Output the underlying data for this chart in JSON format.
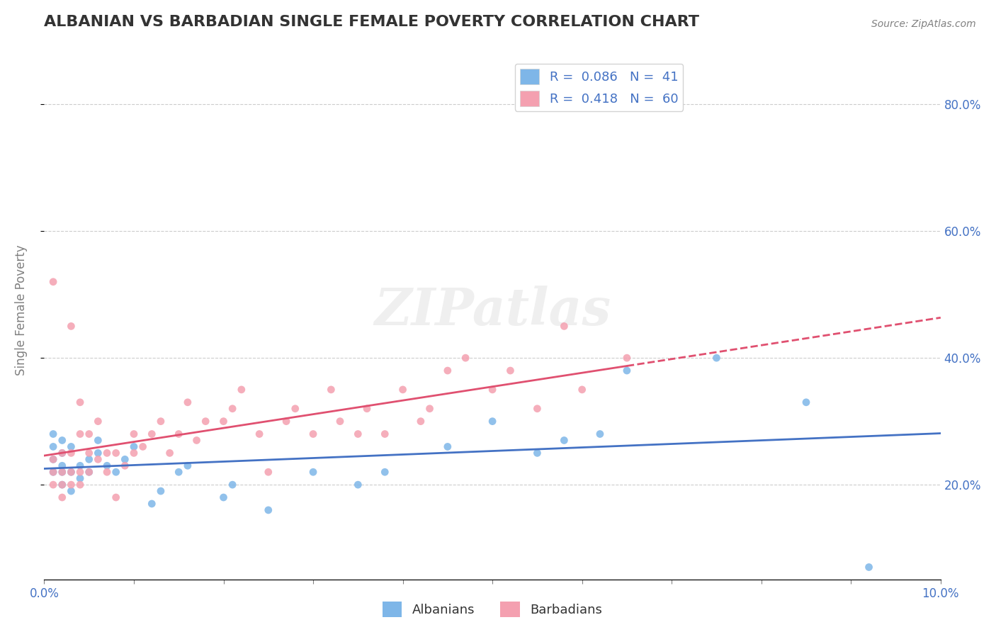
{
  "title": "ALBANIAN VS BARBADIAN SINGLE FEMALE POVERTY CORRELATION CHART",
  "source": "Source: ZipAtlas.com",
  "xlabel": "",
  "ylabel": "Single Female Poverty",
  "xlim": [
    0.0,
    0.1
  ],
  "ylim": [
    0.05,
    0.9
  ],
  "yticks_right": [
    0.2,
    0.4,
    0.6,
    0.8
  ],
  "ytick_labels_right": [
    "20.0%",
    "40.0%",
    "60.0%",
    "80.0%"
  ],
  "albanians_color": "#7EB6E8",
  "barbadians_color": "#F4A0B0",
  "albanian_line_color": "#4472C4",
  "barbadian_line_color": "#E05070",
  "legend_r_albanian": "R =  0.086",
  "legend_n_albanian": "N =  41",
  "legend_r_barbadian": "R =  0.418",
  "legend_n_barbadian": "N =  60",
  "background_color": "#FFFFFF",
  "grid_color": "#CCCCCC",
  "watermark": "ZIPatlas",
  "albanians_x": [
    0.001,
    0.001,
    0.001,
    0.001,
    0.002,
    0.002,
    0.002,
    0.002,
    0.002,
    0.003,
    0.003,
    0.003,
    0.004,
    0.004,
    0.005,
    0.005,
    0.006,
    0.006,
    0.007,
    0.008,
    0.009,
    0.01,
    0.012,
    0.013,
    0.015,
    0.016,
    0.02,
    0.021,
    0.025,
    0.03,
    0.035,
    0.038,
    0.045,
    0.05,
    0.055,
    0.058,
    0.062,
    0.065,
    0.075,
    0.085,
    0.092
  ],
  "albanians_y": [
    0.22,
    0.24,
    0.26,
    0.28,
    0.2,
    0.22,
    0.23,
    0.25,
    0.27,
    0.19,
    0.22,
    0.26,
    0.21,
    0.23,
    0.22,
    0.24,
    0.25,
    0.27,
    0.23,
    0.22,
    0.24,
    0.26,
    0.17,
    0.19,
    0.22,
    0.23,
    0.18,
    0.2,
    0.16,
    0.22,
    0.2,
    0.22,
    0.26,
    0.3,
    0.25,
    0.27,
    0.28,
    0.38,
    0.4,
    0.33,
    0.07
  ],
  "barbadians_x": [
    0.001,
    0.001,
    0.001,
    0.001,
    0.002,
    0.002,
    0.002,
    0.002,
    0.003,
    0.003,
    0.003,
    0.003,
    0.004,
    0.004,
    0.004,
    0.004,
    0.005,
    0.005,
    0.005,
    0.006,
    0.006,
    0.007,
    0.007,
    0.008,
    0.008,
    0.009,
    0.01,
    0.01,
    0.011,
    0.012,
    0.013,
    0.014,
    0.015,
    0.016,
    0.017,
    0.018,
    0.02,
    0.021,
    0.022,
    0.024,
    0.025,
    0.027,
    0.028,
    0.03,
    0.032,
    0.033,
    0.035,
    0.036,
    0.038,
    0.04,
    0.042,
    0.043,
    0.045,
    0.047,
    0.05,
    0.052,
    0.055,
    0.058,
    0.06,
    0.065
  ],
  "barbadians_y": [
    0.2,
    0.22,
    0.24,
    0.52,
    0.18,
    0.2,
    0.22,
    0.25,
    0.2,
    0.22,
    0.25,
    0.45,
    0.2,
    0.22,
    0.28,
    0.33,
    0.22,
    0.25,
    0.28,
    0.24,
    0.3,
    0.22,
    0.25,
    0.18,
    0.25,
    0.23,
    0.25,
    0.28,
    0.26,
    0.28,
    0.3,
    0.25,
    0.28,
    0.33,
    0.27,
    0.3,
    0.3,
    0.32,
    0.35,
    0.28,
    0.22,
    0.3,
    0.32,
    0.28,
    0.35,
    0.3,
    0.28,
    0.32,
    0.28,
    0.35,
    0.3,
    0.32,
    0.38,
    0.4,
    0.35,
    0.38,
    0.32,
    0.45,
    0.35,
    0.4
  ]
}
